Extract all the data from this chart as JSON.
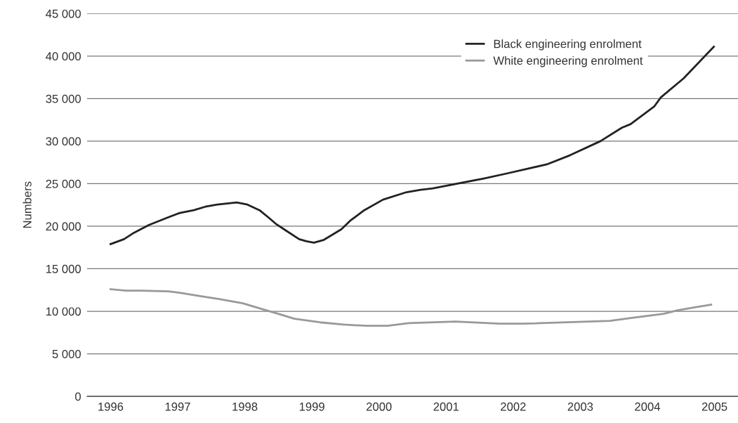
{
  "chart_data": {
    "type": "line",
    "ylabel": "Numbers",
    "xlim": [
      1995.65,
      2005.35
    ],
    "xticks": [
      1996,
      1997,
      1998,
      1999,
      2000,
      2001,
      2002,
      2003,
      2004,
      2005
    ],
    "ylim": [
      0,
      45000
    ],
    "yticks": [
      {
        "value": 0,
        "label": "0"
      },
      {
        "value": 5000,
        "label": "5 000"
      },
      {
        "value": 10000,
        "label": "10 000"
      },
      {
        "value": 15000,
        "label": "15 000"
      },
      {
        "value": 20000,
        "label": "20 000"
      },
      {
        "value": 25000,
        "label": "25 000"
      },
      {
        "value": 30000,
        "label": "30 000"
      },
      {
        "value": 35000,
        "label": "35 000"
      },
      {
        "value": 40000,
        "label": "40 000"
      },
      {
        "value": 45000,
        "label": "45 000"
      }
    ],
    "grid": "y",
    "legend": "top right",
    "marker": "none",
    "line_style": "solid",
    "series": [
      {
        "name": "Black engineering enrolment",
        "color": "#222222",
        "x": [
          1996.0,
          1996.2,
          1996.33,
          1996.57,
          1996.86,
          1997.03,
          1997.24,
          1997.41,
          1997.59,
          1997.88,
          1998.04,
          1998.22,
          1998.35,
          1998.46,
          1998.6,
          1998.81,
          1998.92,
          1999.03,
          1999.18,
          1999.44,
          1999.57,
          1999.78,
          2000.06,
          2000.41,
          2000.62,
          2000.8,
          2001.56,
          2001.9,
          2002.5,
          2002.85,
          2003.3,
          2003.62,
          2003.75,
          2004.1,
          2004.2,
          2004.54,
          2004.99
        ],
        "values": [
          17900,
          18480,
          19140,
          20140,
          21050,
          21550,
          21880,
          22290,
          22540,
          22790,
          22540,
          21880,
          21050,
          20300,
          19560,
          18480,
          18230,
          18070,
          18400,
          19640,
          20640,
          21880,
          23120,
          24000,
          24280,
          24450,
          25610,
          26190,
          27270,
          28350,
          30000,
          31580,
          32000,
          34060,
          35140,
          37380,
          41100
        ]
      },
      {
        "name": "White engineering enrolment",
        "color": "#999999",
        "x": [
          1996.0,
          1996.23,
          1996.44,
          1996.86,
          1997.03,
          1997.35,
          1997.62,
          1997.97,
          1998.32,
          1998.5,
          1998.74,
          1999.12,
          1999.47,
          1999.81,
          2000.13,
          2000.44,
          2001.14,
          2001.8,
          2002.15,
          2003.44,
          2003.75,
          2004.24,
          2004.45,
          2004.69,
          2004.95
        ],
        "values": [
          12600,
          12430,
          12430,
          12350,
          12180,
          11770,
          11440,
          10940,
          10110,
          9700,
          9120,
          8700,
          8450,
          8290,
          8290,
          8600,
          8790,
          8540,
          8540,
          8870,
          9200,
          9700,
          10110,
          10440,
          10780
        ]
      }
    ]
  }
}
